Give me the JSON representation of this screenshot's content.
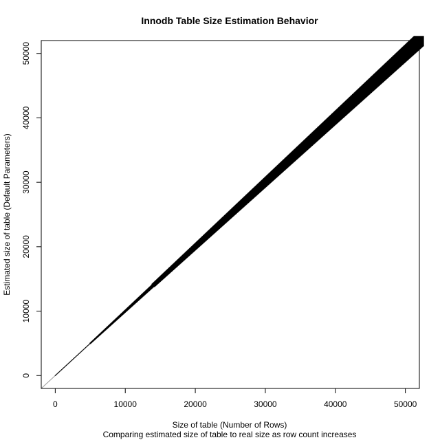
{
  "chart_data": {
    "type": "scatter",
    "title": "Innodb Table Size Estimation Behavior",
    "xlabel": "Size of table (Number of Rows)",
    "subtitle": "Comparing estimated size of table to real size as row count increases",
    "ylabel": "Estimated size of table (Default Parameters)",
    "xlim": [
      -2000,
      52000
    ],
    "ylim": [
      -2000,
      52000
    ],
    "x_ticks": [
      0,
      10000,
      20000,
      30000,
      40000,
      50000
    ],
    "y_ticks": [
      0,
      10000,
      20000,
      30000,
      40000,
      50000
    ],
    "x_tick_labels": [
      "0",
      "10000",
      "20000",
      "30000",
      "40000",
      "50000"
    ],
    "y_tick_labels": [
      "0",
      "10000",
      "20000",
      "30000",
      "40000",
      "50000"
    ],
    "grid": false,
    "colors": {
      "points": "#000000",
      "reference_line": "#999999",
      "frame": "#000000"
    },
    "series": [
      {
        "description_x": "Size of table (rows)",
        "x": [
          0,
          1000,
          2000,
          3000,
          4000,
          5000,
          6000,
          7000,
          8000,
          9000,
          10000,
          11000,
          12000,
          13000,
          14000,
          15000,
          16000,
          17000,
          18000,
          19000,
          20000,
          21000,
          22000,
          23000,
          24000,
          25000,
          26000,
          27000,
          28000,
          29000,
          30000,
          31000,
          32000,
          33000,
          34000,
          35000,
          36000,
          37000,
          38000,
          39000,
          40000,
          41000,
          42000,
          43000,
          44000,
          45000,
          46000,
          47000,
          48000,
          49000,
          50000,
          51000,
          52000
        ],
        "y": [
          0,
          1000,
          2000,
          3000,
          4000,
          5000,
          6000,
          7000,
          8000,
          9000,
          10000,
          11000,
          12000,
          13000,
          14000,
          15000,
          16000,
          17000,
          18000,
          19000,
          20000,
          21000,
          22000,
          23000,
          24000,
          25000,
          26000,
          27000,
          28000,
          29000,
          30000,
          31000,
          32000,
          33000,
          34000,
          35000,
          36000,
          37000,
          38000,
          39000,
          40000,
          41000,
          42000,
          43000,
          44000,
          45000,
          46000,
          47000,
          48000,
          49000,
          50000,
          51000,
          52000
        ]
      }
    ]
  }
}
